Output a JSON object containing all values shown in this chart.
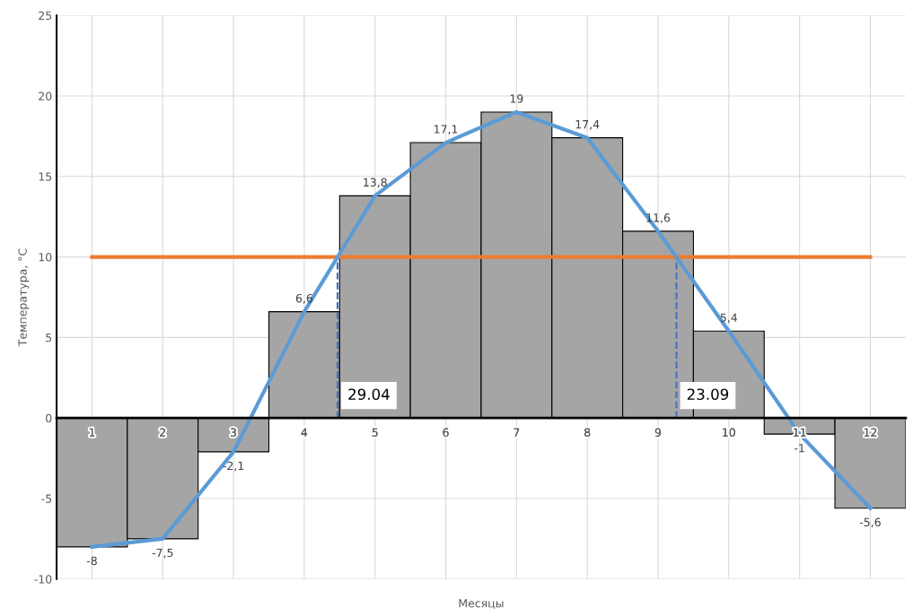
{
  "chart_data": {
    "type": "bar",
    "xlabel": "Месяцы",
    "ylabel": "Температура, °С",
    "x": [
      1,
      2,
      3,
      4,
      5,
      6,
      7,
      8,
      9,
      10,
      11,
      12
    ],
    "xlim": [
      0.5,
      12.5
    ],
    "xticks": [
      1,
      2,
      3,
      4,
      5,
      6,
      7,
      8,
      9,
      10,
      11,
      12
    ],
    "ylim": [
      -10,
      25
    ],
    "yticks": [
      -10,
      -5,
      0,
      5,
      10,
      15,
      20,
      25
    ],
    "grid": true,
    "legend": false,
    "series": [
      {
        "color": "#a5a5a5",
        "values": [
          -8,
          -7.5,
          -2.1,
          6.6,
          13.8,
          17.1,
          19,
          17.4,
          11.6,
          5.4,
          -1,
          -5.6
        ]
      },
      {
        "type": "line",
        "color": "#5b9bd5",
        "values": [
          -8,
          -7.5,
          -2.1,
          6.6,
          13.8,
          17.1,
          19,
          17.4,
          11.6,
          5.4,
          -1,
          -5.6
        ],
        "value_labels": [
          "-8",
          "-7,5",
          "-2,1",
          "6,6",
          "13,8",
          "17,1",
          "19",
          "17,4",
          "11,6",
          "5,4",
          "-1",
          "-5,6"
        ]
      }
    ],
    "ref_lines": [
      {
        "axis": "y",
        "value": 10,
        "color": "#ed7d31",
        "line_style": "solid"
      },
      {
        "axis": "x",
        "value": 4.47,
        "color": "#4472c4",
        "line_style": "dashed"
      },
      {
        "axis": "x",
        "value": 9.26,
        "color": "#4472c4",
        "line_style": "dashed"
      }
    ],
    "annotations": [
      {
        "text": "29.04",
        "x": 4.47,
        "y": 0
      },
      {
        "text": "23.09",
        "x": 9.26,
        "y": 0
      }
    ]
  }
}
